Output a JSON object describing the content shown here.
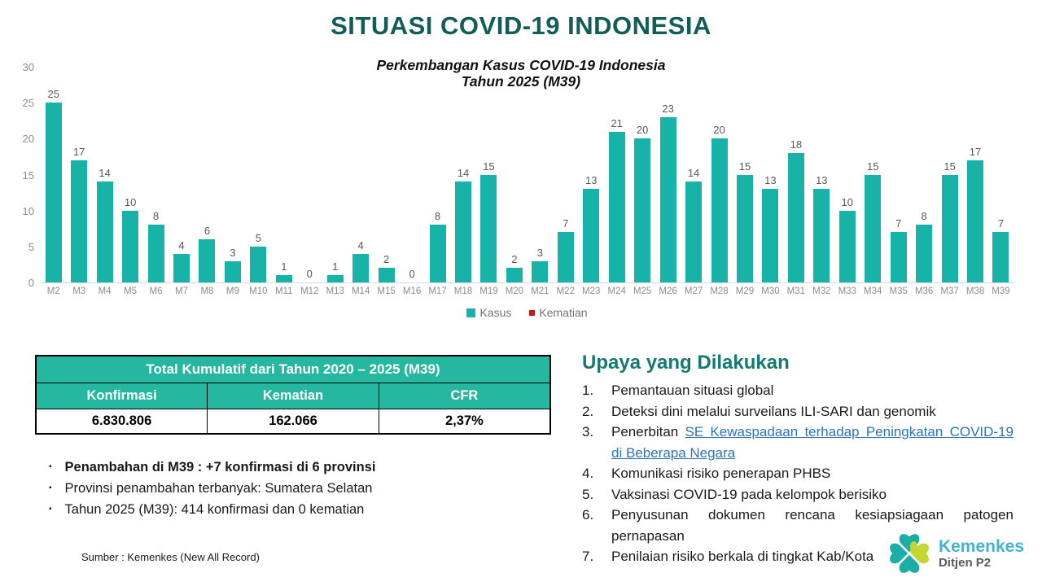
{
  "slide": {
    "title": "SITUASI COVID-19 INDONESIA",
    "source": "Sumber : Kemenkes (New All Record)"
  },
  "chart": {
    "title_line1": "Perkembangan Kasus COVID-19 Indonesia",
    "title_line2": "Tahun 2025 (M39)",
    "legend": [
      {
        "label": "Kasus",
        "color": "#17B3A8"
      },
      {
        "label": "Kematian",
        "color": "#BF1D0D"
      }
    ]
  },
  "chart_data": {
    "type": "bar",
    "title": "Perkembangan Kasus COVID-19 Indonesia Tahun 2025 (M39)",
    "categories": [
      "M2",
      "M3",
      "M4",
      "M5",
      "M6",
      "M7",
      "M8",
      "M9",
      "M10",
      "M11",
      "M12",
      "M13",
      "M14",
      "M15",
      "M16",
      "M17",
      "M18",
      "M19",
      "M20",
      "M21",
      "M22",
      "M23",
      "M24",
      "M25",
      "M26",
      "M27",
      "M28",
      "M29",
      "M30",
      "M31",
      "M32",
      "M33",
      "M34",
      "M35",
      "M36",
      "M37",
      "M38",
      "M39"
    ],
    "series": [
      {
        "name": "Kasus",
        "color": "#17B3A8",
        "values": [
          25,
          17,
          14,
          10,
          8,
          4,
          6,
          3,
          5,
          1,
          0,
          1,
          4,
          2,
          0,
          8,
          14,
          15,
          2,
          3,
          7,
          13,
          21,
          20,
          23,
          14,
          20,
          15,
          13,
          18,
          13,
          10,
          15,
          7,
          8,
          15,
          17,
          7
        ]
      },
      {
        "name": "Kematian",
        "color": "#BF1D0D",
        "values": [
          0,
          0,
          0,
          0,
          0,
          0,
          0,
          0,
          0,
          0,
          0,
          0,
          0,
          0,
          0,
          0,
          0,
          0,
          0,
          0,
          0,
          0,
          0,
          0,
          0,
          0,
          0,
          0,
          0,
          0,
          0,
          0,
          0,
          0,
          0,
          0,
          0,
          0
        ]
      }
    ],
    "xlabel": "",
    "ylabel": "",
    "ylim": [
      0,
      30
    ],
    "yticks": [
      0,
      5,
      10,
      15,
      20,
      25,
      30
    ],
    "grid": false,
    "legend_position": "bottom",
    "data_labels": true
  },
  "table": {
    "title": "Total Kumulatif dari Tahun 2020 – 2025 (M39)",
    "headers": [
      "Konfirmasi",
      "Kematian",
      "CFR"
    ],
    "values": [
      "6.830.806",
      "162.066",
      "2,37%"
    ]
  },
  "bullets": [
    {
      "marker": "▪",
      "text": "Penambahan di M39 : +7 konfirmasi di 6 provinsi",
      "bold": true
    },
    {
      "marker": "▪",
      "text": "Provinsi penambahan terbanyak: Sumatera Selatan",
      "bold": false
    },
    {
      "marker": "▪",
      "text": "Tahun 2025 (M39): 414 konfirmasi dan 0 kematian",
      "bold": false
    }
  ],
  "upaya": {
    "heading": "Upaya yang Dilakukan",
    "items": [
      {
        "num": "1.",
        "text": "Pemantauan situasi global"
      },
      {
        "num": "2.",
        "text": "Deteksi dini melalui surveilans ILI-SARI dan genomik"
      },
      {
        "num": "3.",
        "prefix": "Penerbitan ",
        "link_text": "SE Kewaspadaan terhadap Peningkatan COVID-19  di Beberapa Negara"
      },
      {
        "num": "4.",
        "text": "Komunikasi risiko penerapan PHBS"
      },
      {
        "num": "5.",
        "text": "Vaksinasi COVID-19 pada kelompok berisiko"
      },
      {
        "num": "6.",
        "text": "Penyusunan dokumen rencana kesiapsiagaan patogen pernapasan"
      },
      {
        "num": "7.",
        "text": "Penilaian risiko berkala di tingkat Kab/Kota"
      }
    ]
  },
  "logo": {
    "line1": "Kemenkes",
    "line2": "Ditjen P2",
    "teal": "#1BAEA6",
    "lime": "#C3D72E"
  }
}
